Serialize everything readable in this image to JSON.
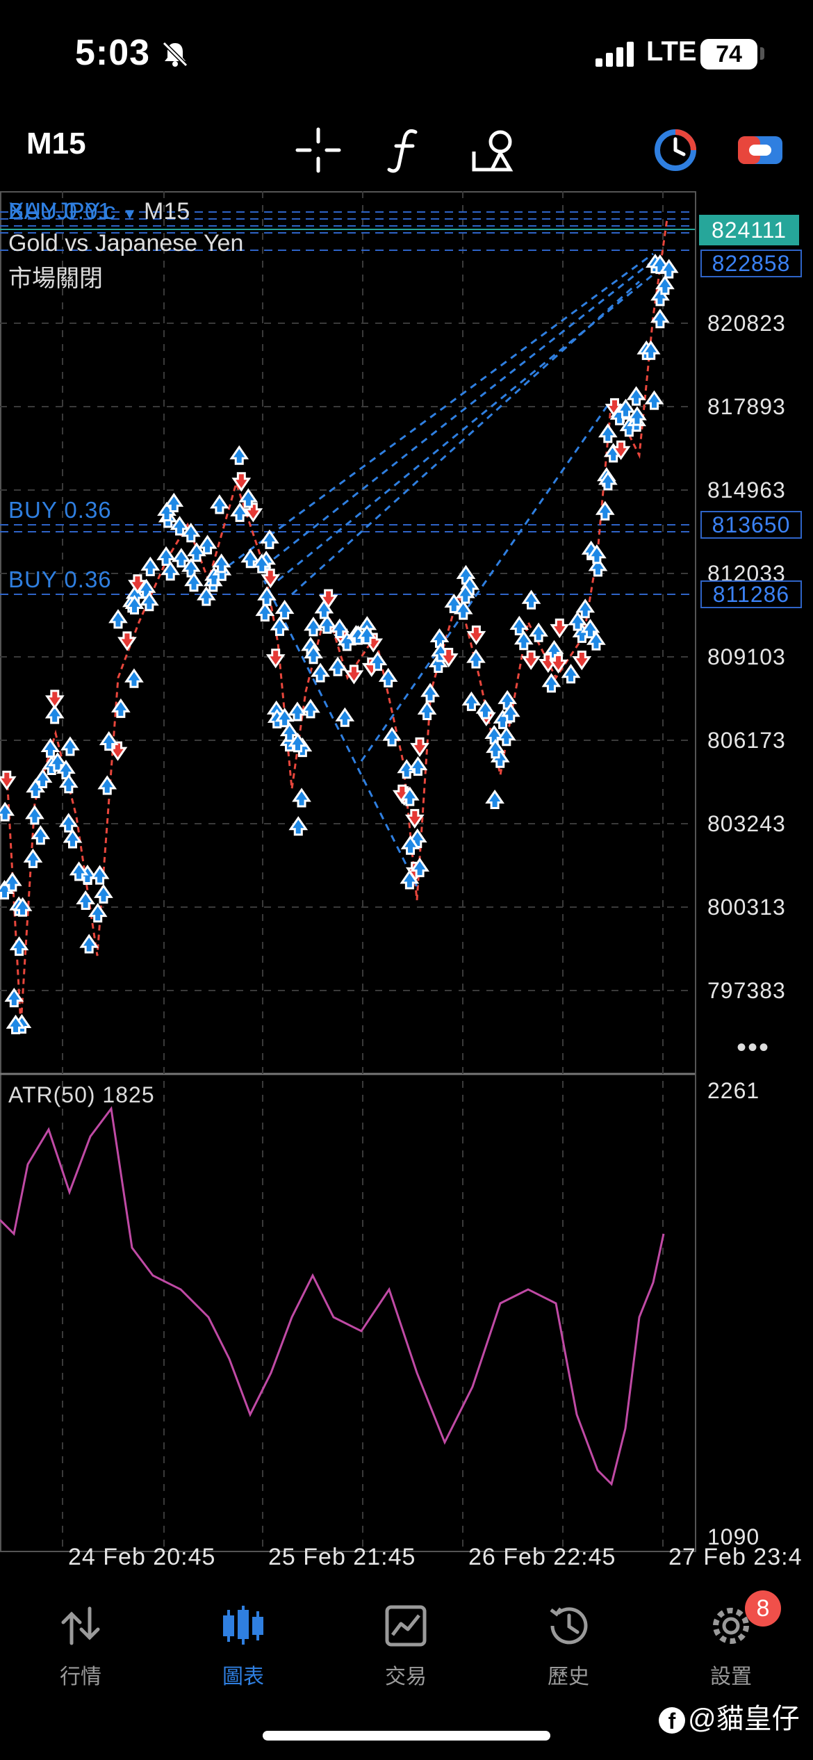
{
  "status_bar": {
    "time": "5:03",
    "network": "LTE",
    "battery": "74"
  },
  "toolbar": {
    "timeframe": "M15",
    "icons": [
      "crosshair-icon",
      "function-icon",
      "objects-icon",
      "clock-icon",
      "toggle-icon"
    ]
  },
  "chart": {
    "symbol": "XAUJPY.c",
    "symbol_timeframe": "M15",
    "description": "Gold vs Japanese Yen",
    "market_status": "市場關閉",
    "buy_labels": [
      "BUY 0.01",
      "BUY 0.36",
      "BUY 0.36"
    ],
    "price_axis": [
      "820823",
      "817893",
      "814963",
      "812033",
      "809103",
      "806173",
      "803243",
      "800313",
      "797383"
    ],
    "price_boxes": [
      "824111",
      "822858",
      "813650",
      "811286"
    ],
    "current_price": "824111",
    "indicator_label": "ATR(50) 1825",
    "indicator_axis": [
      "2261",
      "1090"
    ],
    "time_axis": [
      "24 Feb 20:45",
      "25 Feb 21:45",
      "26 Feb 22:45",
      "27 Feb 23:4"
    ],
    "colors": {
      "background": "#000000",
      "buy_arrow": "#1e88e5",
      "sell_arrow": "#e53935",
      "atr_line": "#c04aa5",
      "current_price": "#26a69a",
      "grid": "#3a3a3a"
    }
  },
  "tab_bar": {
    "tabs": [
      {
        "label": "行情",
        "icon": "quotes-icon"
      },
      {
        "label": "圖表",
        "icon": "chart-icon"
      },
      {
        "label": "交易",
        "icon": "trade-icon"
      },
      {
        "label": "歷史",
        "icon": "history-icon"
      },
      {
        "label": "設置",
        "icon": "settings-icon"
      }
    ],
    "active_tab": "圖表",
    "settings_badge": "8"
  },
  "watermark": "@貓皇仔"
}
